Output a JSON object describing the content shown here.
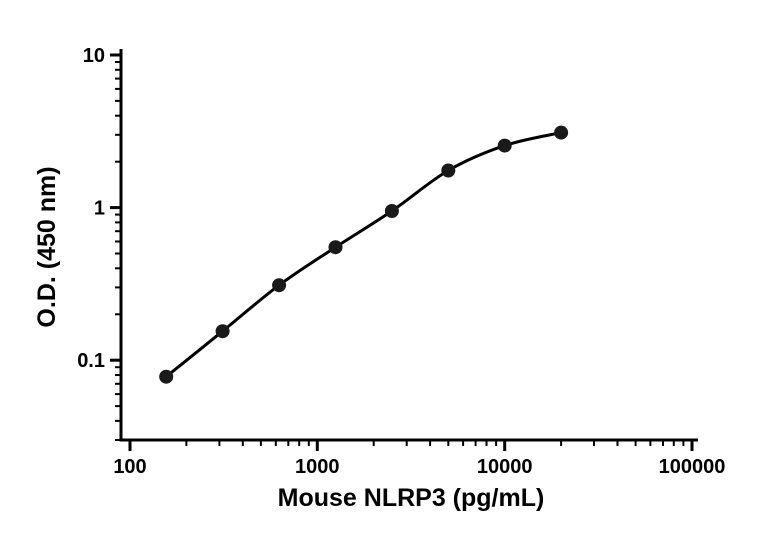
{
  "chart_data": {
    "type": "line",
    "title": "",
    "xlabel": "Mouse NLRP3 (pg/mL)",
    "ylabel": "O.D. (450 nm)",
    "xscale": "log",
    "yscale": "log",
    "xlim": [
      100,
      100000
    ],
    "ylim": [
      0.03,
      10
    ],
    "x": [
      156,
      312,
      625,
      1250,
      2500,
      5000,
      10000,
      20000
    ],
    "y": [
      0.078,
      0.155,
      0.31,
      0.55,
      0.95,
      1.75,
      2.55,
      3.1
    ],
    "x_ticks": [
      100,
      1000,
      10000,
      100000
    ],
    "x_tick_labels": [
      "100",
      "1000",
      "10000",
      "100000"
    ],
    "y_ticks": [
      0.1,
      1,
      10
    ],
    "y_tick_labels": [
      "0.1",
      "1",
      "10"
    ],
    "marker": "circle",
    "grid": false,
    "legend": "none",
    "colors": {
      "line": "#000000",
      "marker": "#1a1a1a",
      "axis": "#000000",
      "text": "#000000",
      "background": "#ffffff"
    }
  }
}
